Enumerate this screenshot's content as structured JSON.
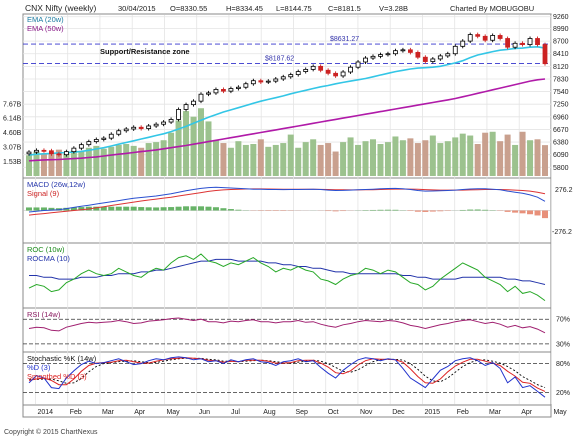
{
  "header": {
    "title": "CNX Nifty (weekly)",
    "date": "30/04/2015",
    "open": "O=8330.55",
    "high": "H=8334.45",
    "low": "L=8144.75",
    "close": "C=8181.5",
    "volume": "V=3.28B",
    "charted_by": "Charted By MOBUGOBU"
  },
  "copyright": "Copyright © 2015 ChartNexus",
  "colors": {
    "background": "#ffffff",
    "frame": "#888888",
    "grid": "#e4e4e4",
    "bull_candle": "#000000",
    "bear_candle": "#cc2222",
    "ema20": "#33c6e6",
    "ema50": "#b01aa8",
    "resistance_line": "#3333cc",
    "vol_up": "#9cc28e",
    "vol_down": "#c9a08e",
    "macd": "#2a4fd0",
    "signal": "#d33",
    "hist_up": "#67b367",
    "hist_down": "#e8907a",
    "roc": "#27a827",
    "rocma": "#2233aa",
    "rsi": "#a02070",
    "stoch_k": "#2233cc",
    "stoch_d": "#dd2222"
  },
  "chart_data": [
    {
      "type": "candlestick",
      "panel": "price",
      "legend": [
        "EMA (20w)",
        "EMA (50w)"
      ],
      "annotations": [
        {
          "text": "Support/Resistance zone",
          "value": 8631
        },
        {
          "text": "$8631.27",
          "value": 8631.27
        },
        {
          "text": "$8187.62",
          "value": 8187.62
        }
      ],
      "ylim": [
        5600,
        9300
      ],
      "y_ticks": [
        9260,
        8990,
        8700,
        8410,
        8120,
        7830,
        7540,
        7250,
        6960,
        6670,
        6380,
        6090,
        5800
      ],
      "x_labels": [
        "2014",
        "Feb",
        "Mar",
        "Apr",
        "May",
        "Jun",
        "Jul",
        "Aug",
        "Sep",
        "Oct",
        "Nov",
        "Dec",
        "2015",
        "Feb",
        "Mar",
        "Apr",
        "May"
      ],
      "weeks": 70,
      "close": [
        6150,
        6190,
        6180,
        6110,
        6090,
        6160,
        6240,
        6320,
        6390,
        6440,
        6470,
        6560,
        6640,
        6680,
        6720,
        6690,
        6750,
        6790,
        6840,
        6900,
        7130,
        7240,
        7320,
        7480,
        7510,
        7590,
        7550,
        7610,
        7640,
        7720,
        7790,
        7760,
        7780,
        7830,
        7880,
        7930,
        8000,
        8050,
        8120,
        8030,
        7960,
        7900,
        7990,
        8100,
        8220,
        8310,
        8350,
        8390,
        8410,
        8480,
        8500,
        8440,
        8330,
        8230,
        8290,
        8360,
        8410,
        8580,
        8700,
        8850,
        8810,
        8720,
        8830,
        8760,
        8560,
        8650,
        8620,
        8760,
        8620,
        8181.5
      ],
      "ema20": [
        6080,
        6100,
        6110,
        6120,
        6130,
        6140,
        6150,
        6165,
        6190,
        6220,
        6250,
        6290,
        6330,
        6370,
        6410,
        6450,
        6490,
        6530,
        6570,
        6620,
        6680,
        6740,
        6810,
        6880,
        6950,
        7010,
        7070,
        7120,
        7170,
        7220,
        7270,
        7320,
        7360,
        7400,
        7440,
        7490,
        7530,
        7570,
        7610,
        7650,
        7680,
        7720,
        7750,
        7780,
        7810,
        7840,
        7880,
        7920,
        7960,
        8000,
        8030,
        8060,
        8080,
        8090,
        8100,
        8120,
        8160,
        8200,
        8250,
        8320,
        8380,
        8420,
        8460,
        8490,
        8510,
        8530,
        8540,
        8560,
        8570,
        8540
      ],
      "ema50": [
        5950,
        5960,
        5970,
        5975,
        5980,
        5990,
        6000,
        6010,
        6025,
        6040,
        6060,
        6080,
        6100,
        6120,
        6140,
        6160,
        6180,
        6200,
        6225,
        6250,
        6275,
        6300,
        6330,
        6360,
        6390,
        6420,
        6450,
        6480,
        6510,
        6540,
        6570,
        6600,
        6630,
        6660,
        6690,
        6720,
        6750,
        6780,
        6810,
        6840,
        6870,
        6900,
        6930,
        6960,
        6990,
        7020,
        7050,
        7080,
        7110,
        7140,
        7170,
        7200,
        7230,
        7260,
        7290,
        7320,
        7350,
        7380,
        7420,
        7460,
        7500,
        7540,
        7580,
        7620,
        7660,
        7700,
        7740,
        7780,
        7810,
        7830
      ]
    },
    {
      "type": "bar",
      "panel": "volume",
      "y_ticks": [
        "7.67B",
        "6.14B",
        "4.60B",
        "3.07B",
        "1.53B"
      ],
      "ylim": [
        0,
        8.5
      ],
      "values": [
        2.2,
        2.6,
        2.4,
        2.3,
        2.8,
        2.5,
        2.7,
        2.6,
        3.0,
        3.2,
        2.9,
        3.1,
        3.3,
        3.4,
        3.2,
        3.0,
        3.5,
        3.6,
        3.8,
        4.6,
        5.9,
        6.9,
        6.3,
        7.2,
        5.8,
        3.8,
        3.5,
        3.0,
        3.7,
        3.3,
        3.4,
        3.9,
        3.1,
        3.3,
        3.5,
        4.4,
        3.0,
        3.6,
        3.9,
        3.3,
        3.5,
        2.6,
        3.6,
        4.1,
        3.3,
        3.7,
        3.9,
        3.4,
        3.6,
        4.2,
        3.8,
        4.0,
        3.5,
        3.8,
        4.3,
        3.5,
        3.7,
        4.1,
        4.5,
        4.3,
        3.4,
        4.6,
        4.7,
        3.7,
        4.4,
        3.3,
        4.7,
        3.8,
        3.9,
        3.28
      ]
    },
    {
      "type": "line",
      "panel": "macd",
      "legend": [
        "MACD (26w,12w)",
        "Signal (9)"
      ],
      "y_ticks": [
        "276.2",
        "-276.2"
      ],
      "ylim": [
        -400,
        400
      ],
      "macd": [
        -20,
        -10,
        0,
        5,
        10,
        25,
        40,
        55,
        70,
        85,
        100,
        115,
        130,
        145,
        160,
        170,
        180,
        190,
        205,
        220,
        240,
        260,
        275,
        290,
        300,
        305,
        300,
        295,
        290,
        285,
        280,
        278,
        276,
        275,
        274,
        275,
        276,
        277,
        279,
        275,
        268,
        262,
        264,
        268,
        272,
        276,
        280,
        284,
        288,
        290,
        285,
        275,
        262,
        255,
        256,
        258,
        262,
        268,
        275,
        282,
        286,
        284,
        280,
        272,
        255,
        240,
        225,
        205,
        175,
        120
      ],
      "signal": [
        -60,
        -50,
        -40,
        -30,
        -20,
        -10,
        0,
        10,
        20,
        35,
        50,
        65,
        80,
        95,
        110,
        125,
        138,
        150,
        162,
        175,
        190,
        205,
        220,
        235,
        250,
        262,
        270,
        276,
        280,
        282,
        283,
        283,
        282,
        281,
        280,
        279,
        278,
        278,
        278,
        277,
        275,
        273,
        271,
        270,
        270,
        271,
        273,
        275,
        278,
        281,
        282,
        281,
        278,
        274,
        270,
        268,
        267,
        267,
        268,
        270,
        273,
        275,
        276,
        276,
        273,
        268,
        262,
        254,
        240,
        220
      ],
      "histogram": [
        40,
        40,
        40,
        35,
        30,
        35,
        40,
        45,
        50,
        50,
        50,
        50,
        50,
        50,
        50,
        45,
        42,
        40,
        43,
        45,
        50,
        55,
        55,
        55,
        50,
        43,
        30,
        19,
        10,
        3,
        -3,
        -5,
        -6,
        -6,
        -6,
        -4,
        -2,
        -1,
        1,
        -2,
        -7,
        -11,
        -7,
        -2,
        2,
        5,
        7,
        9,
        10,
        9,
        3,
        -6,
        -16,
        -19,
        -14,
        -10,
        -5,
        1,
        7,
        12,
        13,
        9,
        4,
        -4,
        -18,
        -28,
        -37,
        -49,
        -65,
        -100
      ]
    },
    {
      "type": "line",
      "panel": "roc",
      "legend": [
        "ROC (10w)",
        "ROCMA (10)"
      ],
      "ylim": [
        -12,
        22
      ],
      "roc": [
        -2,
        0,
        -1,
        -4,
        -3,
        1,
        3,
        6,
        8,
        6,
        5,
        6,
        9,
        7,
        5,
        4,
        7,
        9,
        8,
        12,
        15,
        16,
        14,
        17,
        13,
        12,
        10,
        12,
        11,
        13,
        15,
        12,
        10,
        7,
        9,
        8,
        10,
        8,
        7,
        3,
        2,
        0,
        3,
        5,
        6,
        9,
        8,
        6,
        8,
        7,
        4,
        1,
        0,
        -3,
        -1,
        3,
        6,
        9,
        12,
        10,
        8,
        4,
        2,
        0,
        -4,
        -1,
        -5,
        -4,
        -6,
        -9
      ],
      "rocma": [
        5,
        5,
        4,
        4,
        3,
        3,
        3,
        4,
        4,
        4,
        5,
        5,
        6,
        6,
        6,
        7,
        7,
        8,
        8,
        9,
        10,
        11,
        12,
        13,
        13,
        14,
        14,
        14,
        13,
        13,
        13,
        13,
        12,
        12,
        11,
        11,
        10,
        10,
        9,
        9,
        8,
        7,
        7,
        6,
        6,
        6,
        6,
        6,
        6,
        6,
        5,
        5,
        4,
        4,
        3,
        3,
        3,
        3,
        4,
        4,
        4,
        4,
        4,
        4,
        3,
        3,
        2,
        2,
        1,
        0
      ]
    },
    {
      "type": "line",
      "panel": "rsi",
      "legend": [
        "RSI (14w)"
      ],
      "y_ticks": [
        "70%",
        "30%"
      ],
      "ylim": [
        20,
        85
      ],
      "values": [
        55,
        57,
        56,
        52,
        51,
        57,
        60,
        63,
        65,
        64,
        65,
        66,
        68,
        66,
        63,
        64,
        67,
        68,
        69,
        71,
        72,
        70,
        68,
        70,
        66,
        66,
        64,
        67,
        66,
        68,
        69,
        66,
        66,
        64,
        66,
        66,
        68,
        65,
        66,
        62,
        59,
        57,
        61,
        63,
        66,
        68,
        67,
        66,
        68,
        67,
        64,
        60,
        58,
        55,
        58,
        61,
        63,
        66,
        68,
        69,
        66,
        63,
        65,
        62,
        57,
        60,
        56,
        58,
        54,
        48
      ]
    },
    {
      "type": "line",
      "panel": "stochastic",
      "legend": [
        "Stochastic %K (14w)",
        "%D (3)",
        "Smoothed %D (3)"
      ],
      "y_ticks": [
        "80%",
        "20%"
      ],
      "ylim": [
        0,
        100
      ],
      "k": [
        40,
        55,
        50,
        30,
        28,
        50,
        65,
        78,
        85,
        80,
        82,
        86,
        90,
        84,
        78,
        80,
        86,
        90,
        88,
        92,
        94,
        92,
        88,
        90,
        84,
        86,
        80,
        88,
        84,
        88,
        90,
        84,
        82,
        76,
        84,
        86,
        90,
        84,
        86,
        72,
        60,
        50,
        66,
        78,
        88,
        92,
        90,
        86,
        90,
        88,
        70,
        50,
        40,
        30,
        48,
        66,
        74,
        86,
        90,
        92,
        86,
        76,
        82,
        70,
        40,
        52,
        30,
        34,
        22,
        10
      ],
      "d": [
        45,
        48,
        50,
        45,
        36,
        36,
        48,
        64,
        76,
        81,
        82,
        83,
        86,
        87,
        84,
        81,
        81,
        85,
        88,
        90,
        91,
        92,
        91,
        90,
        87,
        86,
        83,
        85,
        84,
        87,
        87,
        87,
        85,
        81,
        81,
        82,
        86,
        87,
        87,
        81,
        73,
        61,
        59,
        65,
        77,
        86,
        90,
        89,
        89,
        88,
        83,
        69,
        53,
        40,
        39,
        48,
        63,
        75,
        83,
        89,
        89,
        85,
        81,
        76,
        64,
        54,
        41,
        39,
        29,
        22
      ],
      "smoothed_d": [
        48,
        47,
        48,
        48,
        44,
        39,
        40,
        49,
        63,
        74,
        80,
        82,
        84,
        85,
        86,
        84,
        82,
        82,
        85,
        88,
        90,
        91,
        91,
        91,
        89,
        88,
        85,
        85,
        84,
        85,
        86,
        87,
        86,
        84,
        82,
        81,
        83,
        85,
        87,
        85,
        80,
        72,
        64,
        62,
        67,
        76,
        84,
        88,
        89,
        89,
        87,
        80,
        68,
        54,
        44,
        42,
        50,
        62,
        74,
        82,
        87,
        88,
        85,
        81,
        74,
        65,
        53,
        45,
        36,
        30
      ]
    }
  ]
}
